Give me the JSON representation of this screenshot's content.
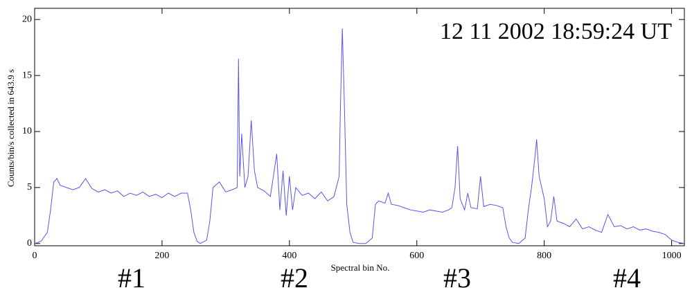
{
  "chart_data": {
    "type": "line",
    "title": "12 11 2002   18:59:24 UT",
    "title_color": "#cc0000",
    "x_label": "Spectral bin No.",
    "y_label": "Counts/bin/s collected in   643.9 s",
    "annotations": [
      {
        "text": "#1",
        "color": "#ff2200"
      },
      {
        "text": "#2",
        "color": "#0000cc"
      },
      {
        "text": "#3",
        "color": "#ff2200"
      },
      {
        "text": "#4",
        "color": "#0000cc"
      }
    ],
    "xlim": [
      0,
      1020
    ],
    "ylim": [
      -0.2,
      21
    ],
    "xticks": [
      0,
      200,
      400,
      600,
      800,
      1000
    ],
    "yticks": [
      0,
      5,
      10,
      15,
      20
    ],
    "series": [
      {
        "color": "#5555ee",
        "x": [
          0,
          10,
          20,
          25,
          30,
          35,
          40,
          50,
          60,
          70,
          80,
          90,
          100,
          110,
          120,
          130,
          140,
          150,
          160,
          170,
          180,
          190,
          200,
          210,
          220,
          230,
          240,
          245,
          250,
          255,
          260,
          270,
          275,
          280,
          290,
          300,
          310,
          318,
          320,
          322,
          325,
          330,
          335,
          340,
          345,
          350,
          360,
          370,
          380,
          385,
          390,
          395,
          400,
          405,
          410,
          420,
          430,
          440,
          450,
          460,
          470,
          478,
          480,
          483,
          486,
          490,
          495,
          500,
          510,
          520,
          530,
          535,
          540,
          550,
          555,
          560,
          570,
          580,
          590,
          600,
          610,
          620,
          630,
          640,
          650,
          655,
          660,
          664,
          668,
          675,
          680,
          685,
          695,
          700,
          705,
          715,
          725,
          735,
          740,
          745,
          750,
          760,
          770,
          775,
          780,
          785,
          788,
          792,
          800,
          805,
          810,
          815,
          820,
          830,
          840,
          850,
          860,
          870,
          880,
          890,
          900,
          910,
          920,
          930,
          940,
          950,
          960,
          970,
          980,
          990,
          1000,
          1010,
          1020
        ],
        "values": [
          0,
          0.2,
          1,
          3,
          5.5,
          5.8,
          5.2,
          5,
          4.8,
          5,
          5.8,
          4.9,
          4.6,
          4.8,
          4.5,
          4.7,
          4.2,
          4.5,
          4.3,
          4.6,
          4.2,
          4.4,
          4.1,
          4.5,
          4.2,
          4.5,
          4.5,
          3,
          1,
          0.2,
          0,
          0.3,
          2,
          5,
          5.5,
          4.6,
          4.8,
          5,
          16.5,
          6,
          9.8,
          5,
          6,
          11,
          6.5,
          5,
          4.7,
          4.2,
          8,
          3,
          6.5,
          2.5,
          6,
          3,
          5,
          4.3,
          4.5,
          4,
          4.6,
          3.8,
          4.2,
          6,
          12,
          19.2,
          13,
          3.5,
          1,
          0.1,
          0,
          0,
          0.5,
          3.5,
          3.8,
          3.6,
          4.5,
          3.5,
          3.4,
          3.2,
          3,
          2.9,
          2.8,
          3,
          2.9,
          2.8,
          3,
          3.2,
          5,
          8.7,
          4,
          3,
          4.5,
          3.2,
          3.1,
          6,
          3.3,
          3.5,
          3.4,
          3.2,
          1.5,
          0.5,
          0.1,
          0,
          0.5,
          3,
          5,
          7.5,
          9.3,
          6,
          4,
          1.5,
          2,
          4.2,
          2,
          1.8,
          1.5,
          2.2,
          1.3,
          1.5,
          1.2,
          1,
          2.6,
          1.5,
          1.6,
          1.3,
          1.5,
          1.2,
          1.3,
          1.1,
          1,
          0.8,
          0.3,
          0.1,
          0
        ]
      }
    ]
  }
}
